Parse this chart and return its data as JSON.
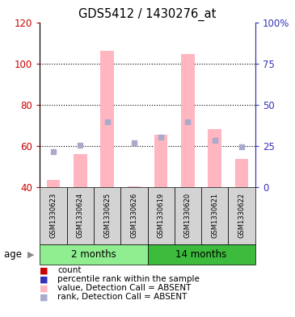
{
  "title": "GDS5412 / 1430276_at",
  "samples": [
    "GSM1330623",
    "GSM1330624",
    "GSM1330625",
    "GSM1330626",
    "GSM1330619",
    "GSM1330620",
    "GSM1330621",
    "GSM1330622"
  ],
  "absent_values": [
    43.5,
    56.0,
    106.0,
    40.5,
    65.5,
    104.5,
    68.0,
    53.5
  ],
  "absent_ranks_pct": [
    21.5,
    25.5,
    39.5,
    27.0,
    30.5,
    39.5,
    28.5,
    24.5
  ],
  "ylim_left": [
    40,
    120
  ],
  "ylim_right": [
    0,
    100
  ],
  "yticks_left": [
    40,
    60,
    80,
    100,
    120
  ],
  "yticks_right": [
    0,
    25,
    50,
    75,
    100
  ],
  "ytick_right_labels": [
    "0",
    "25",
    "50",
    "75",
    "100%"
  ],
  "left_color": "#CC0000",
  "right_color": "#3333BB",
  "bar_absent_color": "#FFB6C1",
  "rank_absent_color": "#AAAACC",
  "bg_color": "#FFFFFF",
  "sample_area_color": "#D3D3D3",
  "group1_color": "#90EE90",
  "group2_color": "#3CBB3C",
  "legend_items": [
    {
      "color": "#CC0000",
      "label": "count"
    },
    {
      "color": "#3333BB",
      "label": "percentile rank within the sample"
    },
    {
      "color": "#FFB6C1",
      "label": "value, Detection Call = ABSENT"
    },
    {
      "color": "#AAAACC",
      "label": "rank, Detection Call = ABSENT"
    }
  ]
}
